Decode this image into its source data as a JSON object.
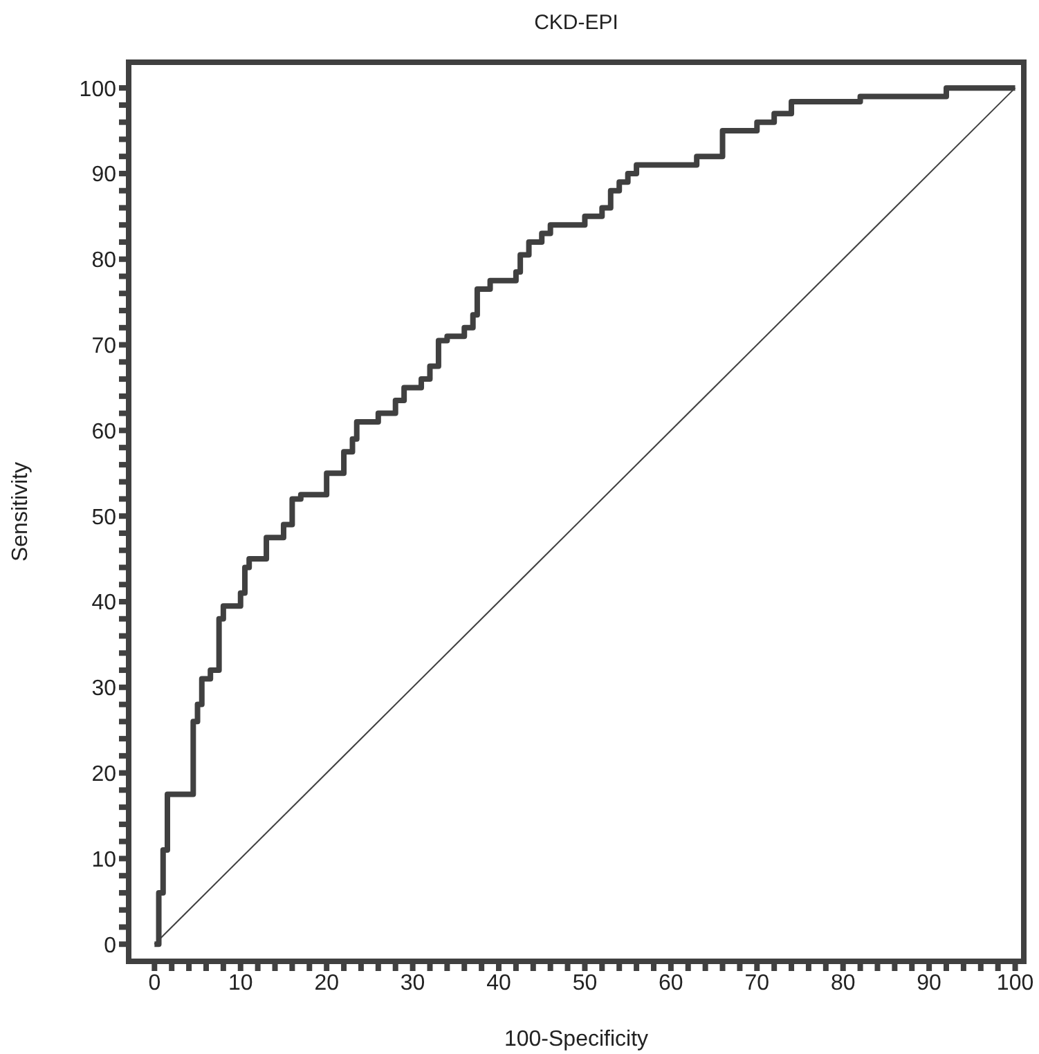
{
  "chart_data": {
    "type": "line",
    "title": "CKD-EPI",
    "xlabel": "100-Specificity",
    "ylabel": "Sensitivity",
    "xlim": [
      -3,
      101
    ],
    "ylim": [
      -2,
      103
    ],
    "xticks": [
      0,
      {
        "value": 2,
        "label": null
      },
      {
        "value": 4,
        "label": null
      },
      {
        "value": 6,
        "label": null
      },
      {
        "value": 8,
        "label": null
      },
      10,
      {
        "value": 12,
        "label": null
      },
      {
        "value": 14,
        "label": null
      },
      {
        "value": 16,
        "label": null
      },
      {
        "value": 18,
        "label": null
      },
      20,
      {
        "value": 22,
        "label": null
      },
      {
        "value": 24,
        "label": null
      },
      {
        "value": 26,
        "label": null
      },
      {
        "value": 28,
        "label": null
      },
      30,
      {
        "value": 32,
        "label": null
      },
      {
        "value": 34,
        "label": null
      },
      {
        "value": 36,
        "label": null
      },
      {
        "value": 38,
        "label": null
      },
      40,
      {
        "value": 42,
        "label": null
      },
      {
        "value": 44,
        "label": null
      },
      {
        "value": 46,
        "label": null
      },
      {
        "value": 48,
        "label": null
      },
      50,
      {
        "value": 52,
        "label": null
      },
      {
        "value": 54,
        "label": null
      },
      {
        "value": 56,
        "label": null
      },
      {
        "value": 58,
        "label": null
      },
      60,
      {
        "value": 62,
        "label": null
      },
      {
        "value": 64,
        "label": null
      },
      {
        "value": 66,
        "label": null
      },
      {
        "value": 68,
        "label": null
      },
      70,
      {
        "value": 72,
        "label": null
      },
      {
        "value": 74,
        "label": null
      },
      {
        "value": 76,
        "label": null
      },
      {
        "value": 78,
        "label": null
      },
      80,
      {
        "value": 82,
        "label": null
      },
      {
        "value": 84,
        "label": null
      },
      {
        "value": 86,
        "label": null
      },
      {
        "value": 88,
        "label": null
      },
      90,
      {
        "value": 92,
        "label": null
      },
      {
        "value": 94,
        "label": null
      },
      {
        "value": 96,
        "label": null
      },
      {
        "value": 98,
        "label": null
      },
      100
    ],
    "yticks": [
      0,
      {
        "value": 2,
        "label": null
      },
      {
        "value": 4,
        "label": null
      },
      {
        "value": 6,
        "label": null
      },
      {
        "value": 8,
        "label": null
      },
      10,
      {
        "value": 12,
        "label": null
      },
      {
        "value": 14,
        "label": null
      },
      {
        "value": 16,
        "label": null
      },
      {
        "value": 18,
        "label": null
      },
      20,
      {
        "value": 22,
        "label": null
      },
      {
        "value": 24,
        "label": null
      },
      {
        "value": 26,
        "label": null
      },
      {
        "value": 28,
        "label": null
      },
      30,
      {
        "value": 32,
        "label": null
      },
      {
        "value": 34,
        "label": null
      },
      {
        "value": 36,
        "label": null
      },
      {
        "value": 38,
        "label": null
      },
      40,
      {
        "value": 42,
        "label": null
      },
      {
        "value": 44,
        "label": null
      },
      {
        "value": 46,
        "label": null
      },
      {
        "value": 48,
        "label": null
      },
      50,
      {
        "value": 52,
        "label": null
      },
      {
        "value": 54,
        "label": null
      },
      {
        "value": 56,
        "label": null
      },
      {
        "value": 58,
        "label": null
      },
      60,
      {
        "value": 62,
        "label": null
      },
      {
        "value": 64,
        "label": null
      },
      {
        "value": 66,
        "label": null
      },
      {
        "value": 68,
        "label": null
      },
      70,
      {
        "value": 72,
        "label": null
      },
      {
        "value": 74,
        "label": null
      },
      {
        "value": 76,
        "label": null
      },
      {
        "value": 78,
        "label": null
      },
      80,
      {
        "value": 82,
        "label": null
      },
      {
        "value": 84,
        "label": null
      },
      {
        "value": 86,
        "label": null
      },
      {
        "value": 88,
        "label": null
      },
      90,
      {
        "value": 92,
        "label": null
      },
      {
        "value": 94,
        "label": null
      },
      {
        "value": 96,
        "label": null
      },
      {
        "value": 98,
        "label": null
      },
      100
    ],
    "grid": false,
    "legend": false,
    "marker": "none",
    "line_style": "solid",
    "series": [
      {
        "color": "#404040",
        "x": [
          0,
          0.5,
          0.5,
          1,
          1,
          1.5,
          1.5,
          4.5,
          4.5,
          5,
          5,
          5.5,
          5.5,
          6.5,
          6.5,
          7.5,
          7.5,
          8,
          8,
          10,
          10,
          10.5,
          10.5,
          11,
          11,
          13,
          13,
          15,
          15,
          16,
          16,
          17,
          17,
          20,
          20,
          22,
          22,
          23,
          23,
          23.5,
          23.5,
          26,
          26,
          28,
          28,
          29,
          29,
          31,
          31,
          32,
          32,
          33,
          33,
          34,
          34,
          36,
          36,
          37,
          37,
          37.5,
          37.5,
          39,
          39,
          42,
          42,
          42.5,
          42.5,
          43.5,
          43.5,
          45,
          45,
          46,
          46,
          50,
          50,
          52,
          52,
          53,
          53,
          54,
          54,
          55,
          55,
          56,
          56,
          63,
          63,
          66,
          66,
          70,
          70,
          72,
          72,
          74,
          74,
          82,
          82,
          92,
          92,
          100
        ],
        "values": [
          0,
          0,
          6,
          6,
          11,
          11,
          17.5,
          17.5,
          26,
          26,
          28,
          28,
          31,
          31,
          32,
          32,
          38,
          38,
          39.5,
          39.5,
          41,
          41,
          44,
          44,
          45,
          45,
          47.5,
          47.5,
          49,
          49,
          52,
          52,
          52.5,
          52.5,
          55,
          55,
          57.5,
          57.5,
          59,
          59,
          61,
          61,
          62,
          62,
          63.5,
          63.5,
          65,
          65,
          66,
          66,
          67.5,
          67.5,
          70.5,
          70.5,
          71,
          71,
          72,
          72,
          73.5,
          73.5,
          76.5,
          76.5,
          77.5,
          77.5,
          78.5,
          78.5,
          80.5,
          80.5,
          82,
          82,
          83,
          83,
          84,
          84,
          85,
          85,
          86,
          86,
          88,
          88,
          89,
          89,
          90,
          90,
          91,
          91,
          92,
          92,
          95,
          95,
          96,
          96,
          97,
          97,
          98.4,
          98.4,
          99,
          99,
          100,
          100
        ]
      },
      {
        "color": "#404040",
        "x": [
          0,
          100
        ],
        "values": [
          0,
          100
        ]
      }
    ]
  }
}
